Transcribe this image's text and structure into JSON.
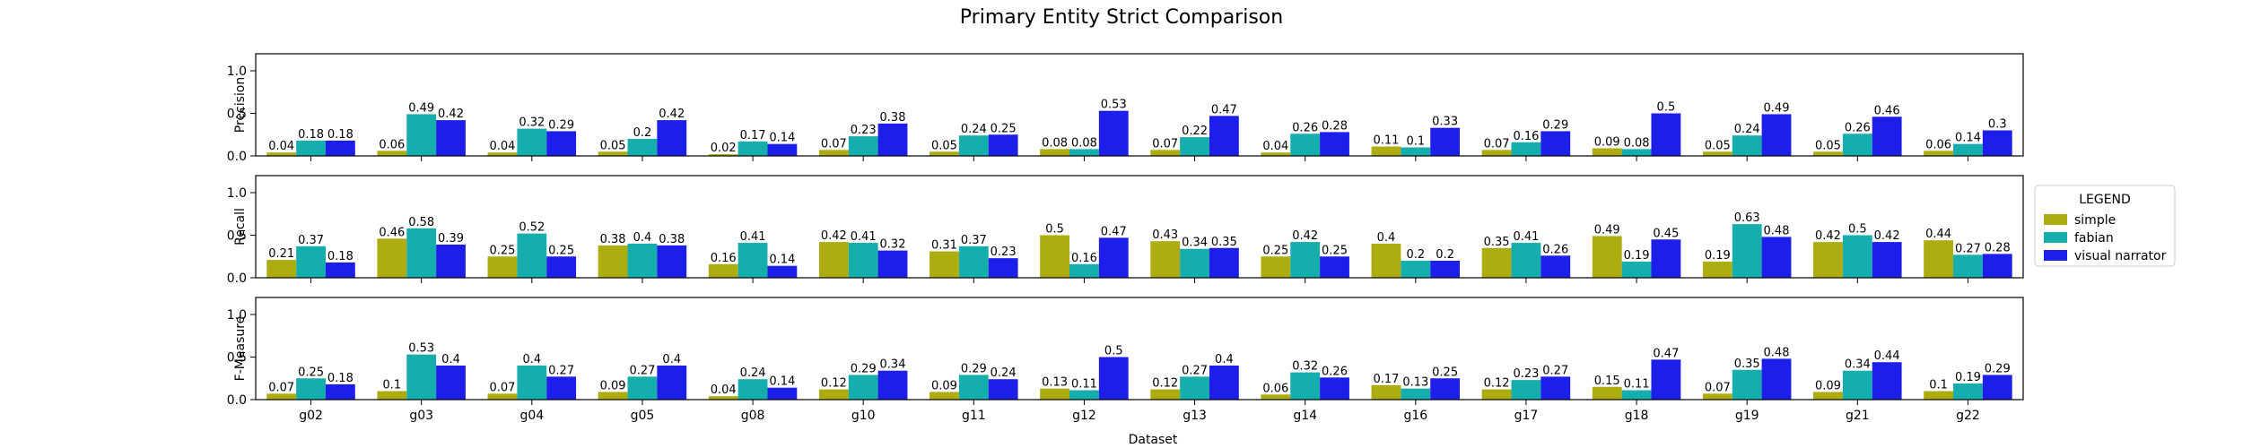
{
  "chart_data": {
    "type": "bar",
    "title": "Primary Entity Strict Comparison",
    "xlabel": "Dataset",
    "categories": [
      "g02",
      "g03",
      "g04",
      "g05",
      "g08",
      "g10",
      "g11",
      "g12",
      "g13",
      "g14",
      "g16",
      "g17",
      "g18",
      "g19",
      "g21",
      "g22"
    ],
    "ylim": [
      0,
      1.2
    ],
    "yticks": [
      "0.0",
      "0.5",
      "1.0"
    ],
    "legend": {
      "title": "LEGEND",
      "placement": "right",
      "entries": [
        {
          "name": "simple",
          "color": "#adad12"
        },
        {
          "name": "fabian",
          "color": "#16adad"
        },
        {
          "name": "visual narrator",
          "color": "#1e1eeb"
        }
      ]
    },
    "panels": [
      {
        "ylabel": "Precision",
        "series": [
          {
            "name": "simple",
            "values": [
              0.04,
              0.06,
              0.04,
              0.05,
              0.02,
              0.07,
              0.05,
              0.08,
              0.07,
              0.04,
              0.11,
              0.07,
              0.09,
              0.05,
              0.05,
              0.06
            ]
          },
          {
            "name": "fabian",
            "values": [
              0.18,
              0.49,
              0.32,
              0.2,
              0.17,
              0.23,
              0.24,
              0.08,
              0.22,
              0.26,
              0.1,
              0.16,
              0.08,
              0.24,
              0.26,
              0.14
            ]
          },
          {
            "name": "visual narrator",
            "values": [
              0.18,
              0.42,
              0.29,
              0.42,
              0.14,
              0.38,
              0.25,
              0.53,
              0.47,
              0.28,
              0.33,
              0.29,
              0.5,
              0.49,
              0.46,
              0.3
            ]
          }
        ]
      },
      {
        "ylabel": "Recall",
        "series": [
          {
            "name": "simple",
            "values": [
              0.21,
              0.46,
              0.25,
              0.38,
              0.16,
              0.42,
              0.31,
              0.5,
              0.43,
              0.25,
              0.4,
              0.35,
              0.49,
              0.19,
              0.42,
              0.44
            ]
          },
          {
            "name": "fabian",
            "values": [
              0.37,
              0.58,
              0.52,
              0.4,
              0.41,
              0.41,
              0.37,
              0.16,
              0.34,
              0.42,
              0.2,
              0.41,
              0.19,
              0.63,
              0.5,
              0.27
            ]
          },
          {
            "name": "visual narrator",
            "values": [
              0.18,
              0.39,
              0.25,
              0.38,
              0.14,
              0.32,
              0.23,
              0.47,
              0.35,
              0.25,
              0.2,
              0.26,
              0.45,
              0.48,
              0.42,
              0.28
            ]
          }
        ]
      },
      {
        "ylabel": "F-Measure",
        "series": [
          {
            "name": "simple",
            "values": [
              0.07,
              0.1,
              0.07,
              0.09,
              0.04,
              0.12,
              0.09,
              0.13,
              0.12,
              0.06,
              0.17,
              0.12,
              0.15,
              0.07,
              0.09,
              0.1
            ]
          },
          {
            "name": "fabian",
            "values": [
              0.25,
              0.53,
              0.4,
              0.27,
              0.24,
              0.29,
              0.29,
              0.11,
              0.27,
              0.32,
              0.13,
              0.23,
              0.11,
              0.35,
              0.34,
              0.19
            ]
          },
          {
            "name": "visual narrator",
            "values": [
              0.18,
              0.4,
              0.27,
              0.4,
              0.14,
              0.34,
              0.24,
              0.5,
              0.4,
              0.26,
              0.25,
              0.27,
              0.47,
              0.48,
              0.44,
              0.29
            ]
          }
        ]
      }
    ]
  }
}
